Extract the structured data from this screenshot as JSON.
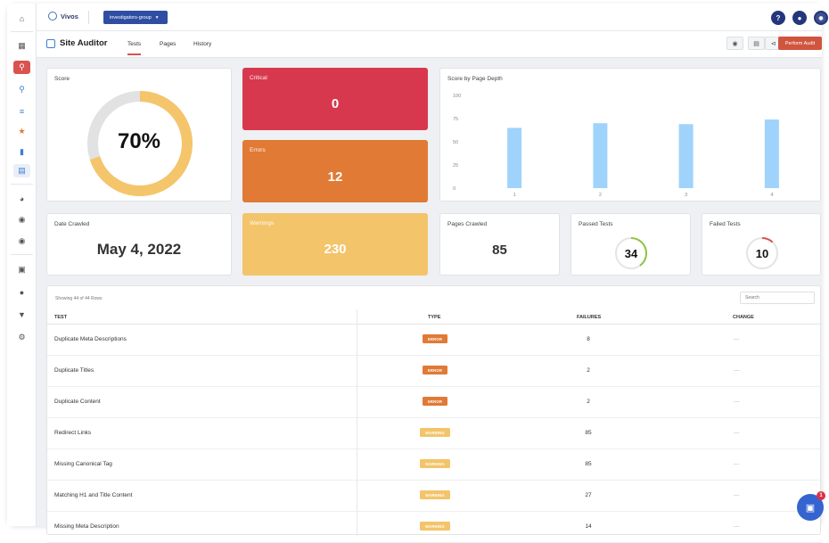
{
  "header": {
    "brand": "Vivos",
    "group_select": "investigators-group",
    "help_label": "?"
  },
  "subheader": {
    "title": "Site Auditor",
    "tabs": [
      {
        "label": "Tests",
        "active": true
      },
      {
        "label": "Pages",
        "active": false
      },
      {
        "label": "History",
        "active": false
      }
    ],
    "perform_audit_label": "Perform Audit"
  },
  "score": {
    "label": "Score",
    "value_text": "70%",
    "fraction": 0.7,
    "fill_color": "#f5c56b",
    "track_color": "#e2e2e2"
  },
  "critical": {
    "label": "Critical",
    "value": "0",
    "color": "#d8384e"
  },
  "errors": {
    "label": "Errors",
    "value": "12",
    "color": "#e07a35"
  },
  "warnings": {
    "label": "Warnings",
    "value": "230",
    "color": "#f3c46a"
  },
  "date_crawled": {
    "label": "Date Crawled",
    "value": "May 4, 2022"
  },
  "pages_crawled": {
    "label": "Pages Crawled",
    "value": "85"
  },
  "passed_tests": {
    "label": "Passed Tests",
    "value": "34",
    "fraction": 0.4,
    "color": "#8cc63f"
  },
  "failed_tests": {
    "label": "Failed Tests",
    "value": "10",
    "fraction": 0.12,
    "color": "#d9534f"
  },
  "chart_data": {
    "type": "bar",
    "title": "Score by Page Depth",
    "categories": [
      "1",
      "2",
      "3",
      "4"
    ],
    "values": [
      65,
      70,
      69,
      74
    ],
    "ylim": [
      0,
      100
    ],
    "yticks": [
      "0",
      "25",
      "50",
      "75",
      "100"
    ],
    "bar_color": "#9fd3fb",
    "grid": false
  },
  "table": {
    "rows_info": "Showing 44 of 44 Rows",
    "search_placeholder": "Search",
    "columns": [
      "TEST",
      "TYPE",
      "FAILURES",
      "CHANGE"
    ],
    "rows": [
      {
        "test": "Duplicate Meta Descriptions",
        "type": "ERROR",
        "failures": "8",
        "change": "—"
      },
      {
        "test": "Duplicate Titles",
        "type": "ERROR",
        "failures": "2",
        "change": "—"
      },
      {
        "test": "Duplicate Content",
        "type": "ERROR",
        "failures": "2",
        "change": "—"
      },
      {
        "test": "Redirect Links",
        "type": "WARNING",
        "failures": "85",
        "change": "—"
      },
      {
        "test": "Missing Canonical Tag",
        "type": "WARNING",
        "failures": "85",
        "change": "—"
      },
      {
        "test": "Matching H1 and Title Content",
        "type": "WARNING",
        "failures": "27",
        "change": "—"
      },
      {
        "test": "Missing Meta Description",
        "type": "WARNING",
        "failures": "14",
        "change": "—"
      }
    ],
    "badge_colors": {
      "ERROR": "#e07a35",
      "WARNING": "#f3c46a"
    }
  },
  "chat": {
    "badge": "1"
  }
}
